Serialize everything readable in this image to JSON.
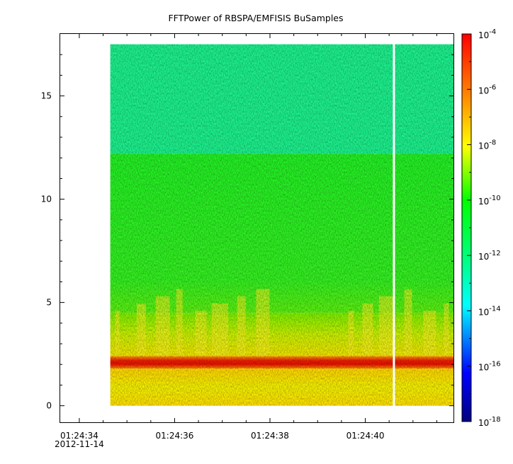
{
  "chart_data": {
    "type": "heatmap",
    "title": "FFTPower of RBSPA/EMFISIS  BuSamples",
    "x_ticks": [
      "01:24:34",
      "01:24:36",
      "01:24:38",
      "01:24:40"
    ],
    "x_first_tick_date": "2012-11-14",
    "x_range_seconds": [
      -0.4,
      7.85
    ],
    "data_x_range_seconds": [
      0.65,
      7.85
    ],
    "gap_at_seconds": 6.6,
    "y_ticks": [
      "0",
      "5",
      "10",
      "15"
    ],
    "ylim": [
      -0.8,
      18.0
    ],
    "y_data_range": [
      0,
      17.5
    ],
    "colorbar": {
      "scale": "log",
      "range": [
        "1e-18",
        "1e-4"
      ],
      "tick_exponents": [
        "-4",
        "-6",
        "-8",
        "-10",
        "-12",
        "-14",
        "-16",
        "-18"
      ]
    },
    "bands": [
      {
        "y_from": 12.2,
        "y_to": 17.5,
        "level": "1e-12"
      },
      {
        "y_from": 4.5,
        "y_to": 12.2,
        "level": "1e-10"
      },
      {
        "y_from": 2.4,
        "y_to": 4.5,
        "level": "1e-9"
      },
      {
        "y_from": 1.8,
        "y_to": 2.4,
        "level": "1e-5"
      },
      {
        "y_from": 0,
        "y_to": 1.8,
        "level": "1e-8"
      }
    ],
    "grid": false
  }
}
